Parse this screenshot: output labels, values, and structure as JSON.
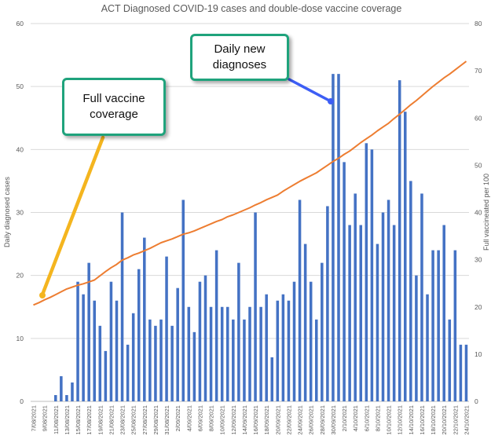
{
  "chart_data": {
    "type": "bar",
    "title": "ACT Diagnosed COVID-19 cases and double-dose vaccine coverage",
    "ylabel": "Daily diagnosed cases",
    "y2label": "Full vaccineated per 100",
    "ylim": [
      0,
      60
    ],
    "y2lim": [
      0,
      80
    ],
    "yticks": [
      "0",
      "10",
      "20",
      "30",
      "40",
      "50",
      "60"
    ],
    "y2ticks": [
      "0",
      "10",
      "20",
      "30",
      "40",
      "50",
      "60",
      "70",
      "80"
    ],
    "xtick_labels": [
      "7/08/2021",
      "9/08/2021",
      "11/08/2021",
      "13/08/2021",
      "15/08/2021",
      "17/08/2021",
      "19/08/2021",
      "21/08/2021",
      "23/08/2021",
      "25/08/2021",
      "27/08/2021",
      "29/08/2021",
      "31/08/2021",
      "2/09/2021",
      "4/09/2021",
      "6/09/2021",
      "8/09/2021",
      "10/09/2021",
      "12/09/2021",
      "14/09/2021",
      "16/09/2021",
      "18/09/2021",
      "20/09/2021",
      "22/09/2021",
      "24/09/2021",
      "26/09/2021",
      "28/09/2021",
      "30/09/2021",
      "2/10/2021",
      "4/10/2021",
      "6/10/2021",
      "8/10/2021",
      "10/10/2021",
      "12/10/2021",
      "14/10/2021",
      "16/10/2021",
      "18/10/2021",
      "20/10/2021",
      "22/10/2021",
      "24/10/2021"
    ],
    "grid": true,
    "series": [
      {
        "type": "bar",
        "color": "#4472c4",
        "values": [
          0,
          0,
          0,
          0,
          1,
          4,
          1,
          3,
          19,
          17,
          22,
          16,
          12,
          8,
          19,
          16,
          30,
          9,
          14,
          21,
          26,
          13,
          12,
          13,
          23,
          12,
          18,
          32,
          15,
          11,
          19,
          20,
          15,
          24,
          15,
          15,
          13,
          22,
          13,
          15,
          30,
          15,
          17,
          7,
          16,
          17,
          16,
          19,
          32,
          25,
          19,
          13,
          22,
          31,
          52,
          52,
          38,
          28,
          33,
          28,
          41,
          40,
          25,
          30,
          32,
          28,
          51,
          46,
          35,
          20,
          33,
          17,
          24,
          24,
          28,
          13,
          24,
          9,
          9
        ]
      },
      {
        "type": "line",
        "axis": "right",
        "color": "#ed7d31",
        "values": [
          20.4,
          20.9,
          21.5,
          22,
          22.6,
          23.2,
          23.8,
          24.2,
          24.6,
          24.9,
          25.3,
          25.7,
          26.6,
          27.5,
          28.3,
          29,
          29.9,
          30.4,
          31,
          31.4,
          31.9,
          32.4,
          33,
          33.6,
          34,
          34.4,
          34.9,
          35.4,
          35.7,
          36.1,
          36.6,
          37.1,
          37.6,
          38.1,
          38.5,
          39.1,
          39.5,
          40,
          40.5,
          41,
          41.6,
          42.1,
          42.7,
          43.2,
          43.7,
          44.5,
          45.2,
          45.9,
          46.6,
          47.2,
          47.8,
          48.4,
          49.2,
          50,
          50.8,
          51.5,
          52.3,
          53,
          53.9,
          54.8,
          55.6,
          56.4,
          57.3,
          58.1,
          58.9,
          59.9,
          60.8,
          61.8,
          62.8,
          63.7,
          64.7,
          65.7,
          66.7,
          67.6,
          68.5,
          69.3,
          70.2,
          71.1,
          72
        ]
      }
    ],
    "annotations": [
      {
        "text": "Full vaccine coverage",
        "arrow_color": "#f4b51f"
      },
      {
        "text": "Daily new diagnoses",
        "arrow_color": "#3d5ef5"
      }
    ]
  },
  "callouts": {
    "vaccine": "Full vaccine\ncoverage",
    "daily": "Daily new\ndiagnoses"
  }
}
